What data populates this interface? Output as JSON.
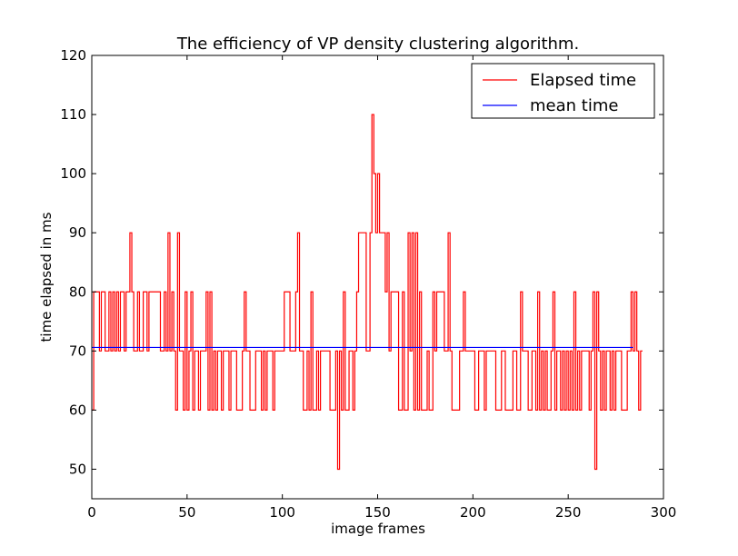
{
  "chart_data": {
    "type": "line",
    "title": "The efficiency of VP density clustering algorithm.",
    "xlabel": "image frames",
    "ylabel": "time elapsed in ms",
    "xlim": [
      0,
      300
    ],
    "ylim": [
      45,
      120
    ],
    "xticks": [
      0,
      50,
      100,
      150,
      200,
      250,
      300
    ],
    "yticks": [
      50,
      60,
      70,
      80,
      90,
      100,
      110,
      120
    ],
    "grid": false,
    "legend_position": "top-right",
    "series": [
      {
        "name": "Elapsed time",
        "color": "#ff0000",
        "style": "step",
        "y": [
          60,
          80,
          80,
          80,
          70,
          80,
          80,
          70,
          70,
          80,
          70,
          80,
          70,
          80,
          70,
          80,
          80,
          70,
          80,
          80,
          90,
          80,
          70,
          70,
          80,
          70,
          70,
          80,
          80,
          70,
          80,
          80,
          80,
          80,
          80,
          80,
          70,
          70,
          80,
          70,
          90,
          70,
          80,
          70,
          60,
          90,
          70,
          70,
          60,
          80,
          60,
          70,
          80,
          60,
          70,
          70,
          60,
          70,
          70,
          70,
          80,
          60,
          80,
          60,
          70,
          60,
          70,
          70,
          60,
          70,
          70,
          70,
          60,
          70,
          70,
          70,
          60,
          60,
          60,
          70,
          80,
          70,
          70,
          60,
          60,
          60,
          70,
          70,
          70,
          60,
          70,
          60,
          70,
          70,
          70,
          60,
          70,
          70,
          70,
          70,
          70,
          80,
          80,
          80,
          70,
          70,
          70,
          80,
          90,
          70,
          70,
          60,
          60,
          70,
          60,
          80,
          60,
          60,
          70,
          60,
          70,
          70,
          70,
          70,
          70,
          60,
          60,
          60,
          70,
          50,
          70,
          60,
          80,
          60,
          60,
          70,
          70,
          60,
          70,
          80,
          90,
          90,
          90,
          90,
          70,
          70,
          90,
          110,
          100,
          90,
          100,
          90,
          90,
          90,
          80,
          90,
          70,
          80,
          80,
          80,
          80,
          60,
          60,
          80,
          60,
          60,
          90,
          70,
          90,
          60,
          90,
          60,
          80,
          60,
          60,
          60,
          70,
          60,
          60,
          80,
          70,
          80,
          80,
          80,
          80,
          70,
          70,
          90,
          70,
          60,
          60,
          60,
          60,
          70,
          70,
          80,
          70,
          70,
          70,
          70,
          70,
          60,
          60,
          70,
          70,
          70,
          60,
          70,
          70,
          70,
          70,
          70,
          60,
          60,
          60,
          70,
          70,
          60,
          60,
          60,
          60,
          70,
          70,
          60,
          60,
          80,
          70,
          70,
          70,
          60,
          60,
          70,
          70,
          60,
          80,
          60,
          70,
          60,
          70,
          60,
          60,
          70,
          80,
          60,
          70,
          70,
          60,
          70,
          60,
          70,
          60,
          70,
          60,
          80,
          60,
          70,
          60,
          70,
          70,
          70,
          70,
          60,
          70,
          80,
          50,
          80,
          70,
          60,
          70,
          60,
          70,
          70,
          60,
          70,
          60,
          70,
          70,
          70,
          60,
          60,
          60,
          70,
          70,
          80,
          70,
          80,
          70,
          60,
          70,
          70
        ]
      },
      {
        "name": "mean time",
        "color": "#0000ff",
        "style": "line",
        "x": [
          0,
          284
        ],
        "y": [
          70.6,
          70.6
        ]
      }
    ]
  }
}
